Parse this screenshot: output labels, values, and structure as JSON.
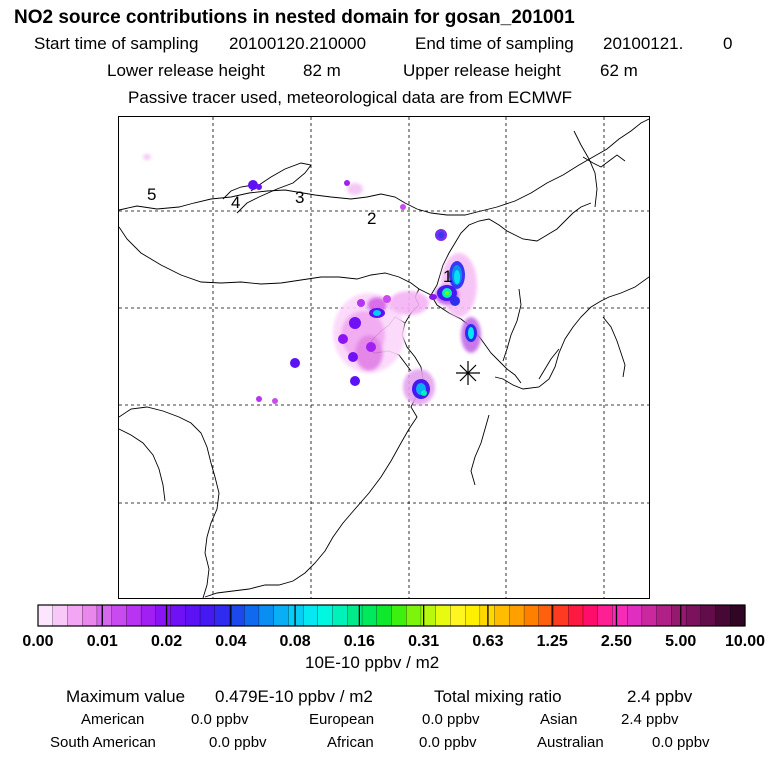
{
  "header": {
    "title": "NO2 source contributions in nested domain for gosan_201001",
    "start_label": "Start time of sampling",
    "start_value": "20100120.210000",
    "end_label": "End time of sampling",
    "end_value": "20100121.",
    "end_suffix": "0",
    "lower_label": "Lower release height",
    "lower_value": "82 m",
    "upper_label": "Upper release height",
    "upper_value": "62 m",
    "note": "Passive tracer used, meteorological data are from ECMWF"
  },
  "map": {
    "region_labels": [
      "1",
      "2",
      "3",
      "4",
      "5"
    ],
    "receptor_marker": "receptor-asterisk"
  },
  "colorbar": {
    "ticks": [
      "0.00",
      "0.01",
      "0.02",
      "0.04",
      "0.08",
      "0.16",
      "0.31",
      "0.63",
      "1.25",
      "2.50",
      "5.00",
      "10.00"
    ],
    "unit": "10E-10 ppbv / m2",
    "colors": [
      "#fde6fd",
      "#f8c8f8",
      "#f3a6f3",
      "#e987ec",
      "#d568ef",
      "#c94bf0",
      "#b833f2",
      "#a21ff3",
      "#8a14f4",
      "#7010f5",
      "#5c12f4",
      "#4419f2",
      "#2f2cf0",
      "#1d48ee",
      "#0f6aef",
      "#0b8ef2",
      "#0aaef5",
      "#06cdf6",
      "#05e8f2",
      "#00f8e0",
      "#00f2b8",
      "#00ec8c",
      "#00e85c",
      "#10e82c",
      "#3ef010",
      "#7cf40c",
      "#b8f80c",
      "#e8fa10",
      "#fff520",
      "#fff000",
      "#ffd800",
      "#ffbc00",
      "#ff9f00",
      "#ff8000",
      "#ff6010",
      "#ff3a22",
      "#ff1840",
      "#ff0d6a",
      "#ff1f95",
      "#f62cb8",
      "#e02ec0",
      "#c9289f",
      "#b12086",
      "#961970",
      "#7c125c",
      "#620c4a",
      "#480836",
      "#300624"
    ]
  },
  "stats": {
    "max_label": "Maximum value",
    "max_value": "0.479E-10 ppbv / m2",
    "total_label": "Total mixing ratio",
    "total_value": "2.4 ppbv",
    "regions": [
      {
        "name": "American",
        "value": "0.0 ppbv"
      },
      {
        "name": "European",
        "value": "0.0 ppbv"
      },
      {
        "name": "Asian",
        "value": "2.4 ppbv"
      },
      {
        "name": "South American",
        "value": "0.0 ppbv"
      },
      {
        "name": "African",
        "value": "0.0 ppbv"
      },
      {
        "name": "Australian",
        "value": "0.0 ppbv"
      }
    ]
  }
}
